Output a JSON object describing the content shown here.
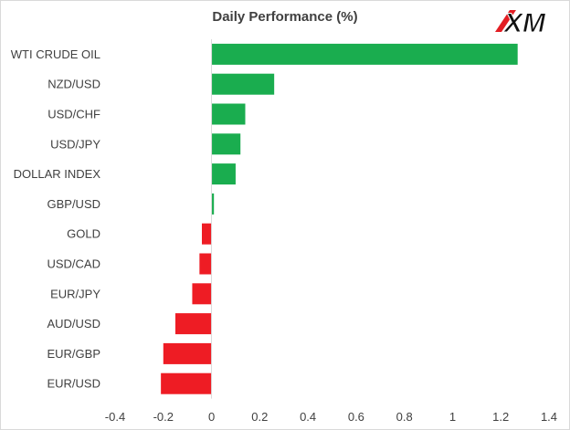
{
  "chart_data": {
    "type": "bar",
    "orientation": "horizontal",
    "title": "Daily Performance  (%)",
    "xlabel": "",
    "ylabel": "",
    "categories": [
      "WTI CRUDE OIL",
      "NZD/USD",
      "USD/CHF",
      "USD/JPY",
      "DOLLAR INDEX",
      "GBP/USD",
      "GOLD",
      "USD/CAD",
      "EUR/JPY",
      "AUD/USD",
      "EUR/GBP",
      "EUR/USD"
    ],
    "values": [
      1.27,
      0.26,
      0.14,
      0.12,
      0.1,
      0.01,
      -0.04,
      -0.05,
      -0.08,
      -0.15,
      -0.2,
      -0.21
    ],
    "xlim": [
      -0.4,
      1.4
    ],
    "xticks": [
      -0.4,
      -0.2,
      0,
      0.2,
      0.4,
      0.6,
      0.8,
      1,
      1.2,
      1.4
    ],
    "xtick_labels": [
      "-0.4",
      "-0.2",
      "0",
      "0.2",
      "0.4",
      "0.6",
      "0.8",
      "1",
      "1.2",
      "1.4"
    ],
    "grid": false,
    "legend": "none",
    "colors": {
      "positive": "#1aad4f",
      "negative": "#ee1c24"
    }
  },
  "logo": {
    "text": "XM",
    "mark_color": "#e31e24",
    "text_color": "#111111"
  }
}
